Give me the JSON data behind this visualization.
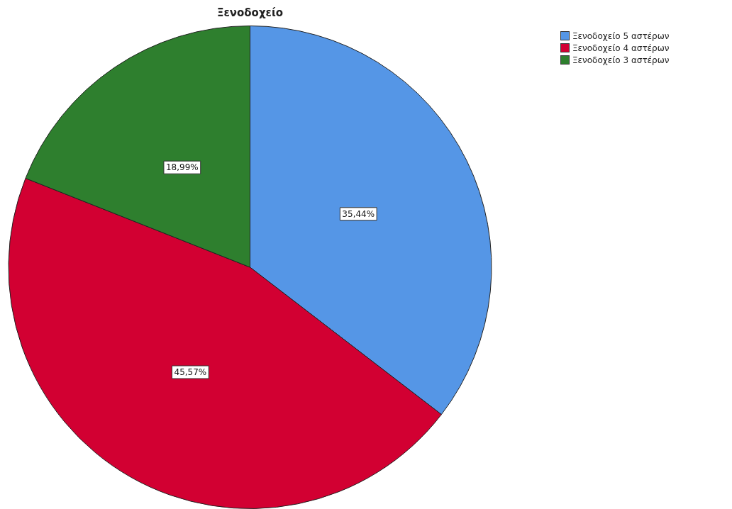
{
  "chart_data": {
    "type": "pie",
    "title": "Ξενοδοχείο",
    "categories": [
      "Ξενοδοχείο 5 αστέρων",
      "Ξενοδοχείο 4 αστέρων",
      "Ξενοδοχείο 3 αστέρων"
    ],
    "values": [
      35.44,
      45.57,
      18.99
    ],
    "colors": [
      "#5596e6",
      "#d20032",
      "#2e7f2e"
    ],
    "value_labels": [
      "35,44%",
      "45,57%",
      "18,99%"
    ],
    "legend": "top right"
  }
}
